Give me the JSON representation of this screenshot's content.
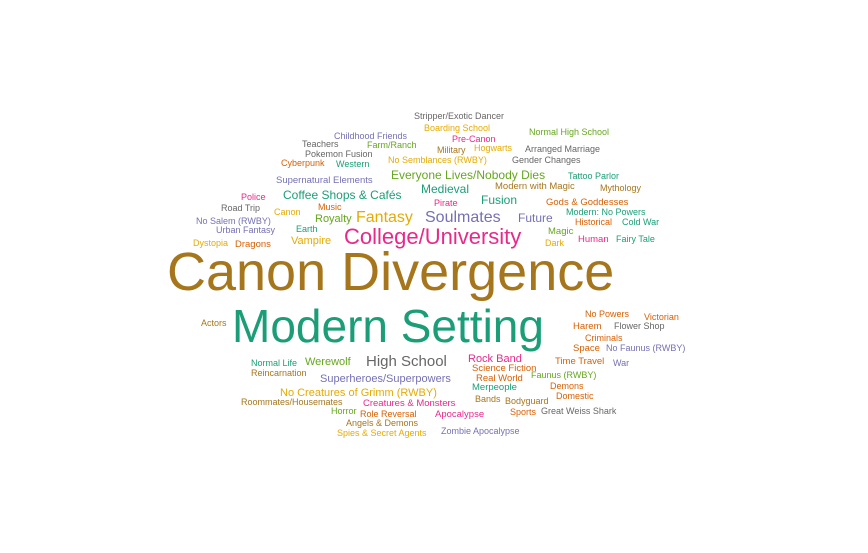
{
  "chart_data": {
    "type": "wordcloud",
    "palette": {
      "brown": "#a6761d",
      "teal": "#1b9e77",
      "magenta": "#e7298a",
      "orange": "#d95f02",
      "purple": "#7570b3",
      "green": "#66a61e",
      "gold": "#e6ab02",
      "gray": "#666666"
    },
    "words": [
      {
        "text": "Canon Divergence",
        "weight": 100,
        "color": "#a6761d"
      },
      {
        "text": "Modern Setting",
        "weight": 80,
        "color": "#1b9e77"
      },
      {
        "text": "College/University",
        "weight": 38,
        "color": "#e7298a"
      },
      {
        "text": "Fantasy",
        "weight": 26,
        "color": "#e6ab02"
      },
      {
        "text": "Soulmates",
        "weight": 26,
        "color": "#7570b3"
      },
      {
        "text": "High School",
        "weight": 24,
        "color": "#666666"
      },
      {
        "text": "Coffee Shops & Cafés",
        "weight": 18,
        "color": "#1b9e77"
      },
      {
        "text": "Everyone Lives/Nobody Dies",
        "weight": 18,
        "color": "#66a61e"
      },
      {
        "text": "Medieval",
        "weight": 18,
        "color": "#1b9e77"
      },
      {
        "text": "Fusion",
        "weight": 18,
        "color": "#1b9e77"
      },
      {
        "text": "Future",
        "weight": 18,
        "color": "#7570b3"
      },
      {
        "text": "Royalty",
        "weight": 17,
        "color": "#66a61e"
      },
      {
        "text": "Vampire",
        "weight": 17,
        "color": "#e6ab02"
      },
      {
        "text": "Werewolf",
        "weight": 17,
        "color": "#66a61e"
      },
      {
        "text": "Rock Band",
        "weight": 17,
        "color": "#e7298a"
      },
      {
        "text": "Superheroes/Superpowers",
        "weight": 16,
        "color": "#7570b3"
      },
      {
        "text": "No Creatures of Grimm (RWBY)",
        "weight": 16,
        "color": "#e6ab02"
      },
      {
        "text": "Supernatural Elements",
        "weight": 14,
        "color": "#7570b3"
      },
      {
        "text": "Modern with Magic",
        "weight": 14,
        "color": "#a6761d"
      },
      {
        "text": "Gods & Goddesses",
        "weight": 14,
        "color": "#d95f02"
      },
      {
        "text": "Dragons",
        "weight": 14,
        "color": "#d95f02"
      },
      {
        "text": "Magic",
        "weight": 14,
        "color": "#66a61e"
      },
      {
        "text": "Human",
        "weight": 14,
        "color": "#e7298a"
      },
      {
        "text": "Time Travel",
        "weight": 14,
        "color": "#d95f02"
      },
      {
        "text": "Space",
        "weight": 14,
        "color": "#d95f02"
      },
      {
        "text": "Harem",
        "weight": 14,
        "color": "#d95f02"
      },
      {
        "text": "Real World",
        "weight": 14,
        "color": "#d95f02"
      },
      {
        "text": "Science Fiction",
        "weight": 14,
        "color": "#d95f02"
      },
      {
        "text": "Merpeople",
        "weight": 14,
        "color": "#1b9e77"
      },
      {
        "text": "Creatures & Monsters",
        "weight": 14,
        "color": "#e7298a"
      },
      {
        "text": "Apocalypse",
        "weight": 14,
        "color": "#e7298a"
      },
      {
        "text": "Stripper/Exotic Dancer",
        "weight": 12,
        "color": "#666666"
      },
      {
        "text": "Boarding School",
        "weight": 12,
        "color": "#e6ab02"
      },
      {
        "text": "Childhood Friends",
        "weight": 12,
        "color": "#7570b3"
      },
      {
        "text": "Pre-Canon",
        "weight": 12,
        "color": "#e7298a"
      },
      {
        "text": "Normal High School",
        "weight": 12,
        "color": "#66a61e"
      },
      {
        "text": "Teachers",
        "weight": 12,
        "color": "#666666"
      },
      {
        "text": "Farm/Ranch",
        "weight": 12,
        "color": "#66a61e"
      },
      {
        "text": "Military",
        "weight": 12,
        "color": "#a6761d"
      },
      {
        "text": "Hogwarts",
        "weight": 12,
        "color": "#e6ab02"
      },
      {
        "text": "Arranged Marriage",
        "weight": 12,
        "color": "#666666"
      },
      {
        "text": "Pokemon Fusion",
        "weight": 12,
        "color": "#666666"
      },
      {
        "text": "Cyberpunk",
        "weight": 12,
        "color": "#d95f02"
      },
      {
        "text": "Western",
        "weight": 12,
        "color": "#1b9e77"
      },
      {
        "text": "No Semblances (RWBY)",
        "weight": 12,
        "color": "#e6ab02"
      },
      {
        "text": "Gender Changes",
        "weight": 12,
        "color": "#666666"
      },
      {
        "text": "Tattoo Parlor",
        "weight": 12,
        "color": "#1b9e77"
      },
      {
        "text": "Mythology",
        "weight": 12,
        "color": "#a6761d"
      },
      {
        "text": "Police",
        "weight": 12,
        "color": "#e7298a"
      },
      {
        "text": "Pirate",
        "weight": 12,
        "color": "#e7298a"
      },
      {
        "text": "Road Trip",
        "weight": 12,
        "color": "#666666"
      },
      {
        "text": "Music",
        "weight": 12,
        "color": "#d95f02"
      },
      {
        "text": "Canon",
        "weight": 12,
        "color": "#e6ab02"
      },
      {
        "text": "Modern: No Powers",
        "weight": 12,
        "color": "#1b9e77"
      },
      {
        "text": "No Salem (RWBY)",
        "weight": 12,
        "color": "#7570b3"
      },
      {
        "text": "Historical",
        "weight": 12,
        "color": "#d95f02"
      },
      {
        "text": "Cold War",
        "weight": 12,
        "color": "#1b9e77"
      },
      {
        "text": "Urban Fantasy",
        "weight": 12,
        "color": "#7570b3"
      },
      {
        "text": "Earth",
        "weight": 12,
        "color": "#1b9e77"
      },
      {
        "text": "Dystopia",
        "weight": 12,
        "color": "#e6ab02"
      },
      {
        "text": "Dark",
        "weight": 12,
        "color": "#e6ab02"
      },
      {
        "text": "Fairy Tale",
        "weight": 12,
        "color": "#1b9e77"
      },
      {
        "text": "No Powers",
        "weight": 12,
        "color": "#d95f02"
      },
      {
        "text": "Victorian",
        "weight": 12,
        "color": "#d95f02"
      },
      {
        "text": "Actors",
        "weight": 12,
        "color": "#a6761d"
      },
      {
        "text": "Flower Shop",
        "weight": 12,
        "color": "#666666"
      },
      {
        "text": "Criminals",
        "weight": 12,
        "color": "#d95f02"
      },
      {
        "text": "No Faunus (RWBY)",
        "weight": 12,
        "color": "#7570b3"
      },
      {
        "text": "War",
        "weight": 12,
        "color": "#7570b3"
      },
      {
        "text": "Normal Life",
        "weight": 12,
        "color": "#1b9e77"
      },
      {
        "text": "Reincarnation",
        "weight": 12,
        "color": "#a6761d"
      },
      {
        "text": "Faunus (RWBY)",
        "weight": 12,
        "color": "#66a61e"
      },
      {
        "text": "Demons",
        "weight": 12,
        "color": "#d95f02"
      },
      {
        "text": "Domestic",
        "weight": 12,
        "color": "#d95f02"
      },
      {
        "text": "Bands",
        "weight": 12,
        "color": "#a6761d"
      },
      {
        "text": "Bodyguard",
        "weight": 12,
        "color": "#a6761d"
      },
      {
        "text": "Roommates/Housemates",
        "weight": 12,
        "color": "#a6761d"
      },
      {
        "text": "Horror",
        "weight": 12,
        "color": "#66a61e"
      },
      {
        "text": "Role Reversal",
        "weight": 12,
        "color": "#d95f02"
      },
      {
        "text": "Sports",
        "weight": 12,
        "color": "#d95f02"
      },
      {
        "text": "Great Weiss Shark",
        "weight": 12,
        "color": "#666666"
      },
      {
        "text": "Angels & Demons",
        "weight": 12,
        "color": "#a6761d"
      },
      {
        "text": "Spies & Secret Agents",
        "weight": 12,
        "color": "#e6ab02"
      },
      {
        "text": "Zombie Apocalypse",
        "weight": 12,
        "color": "#7570b3"
      }
    ]
  }
}
